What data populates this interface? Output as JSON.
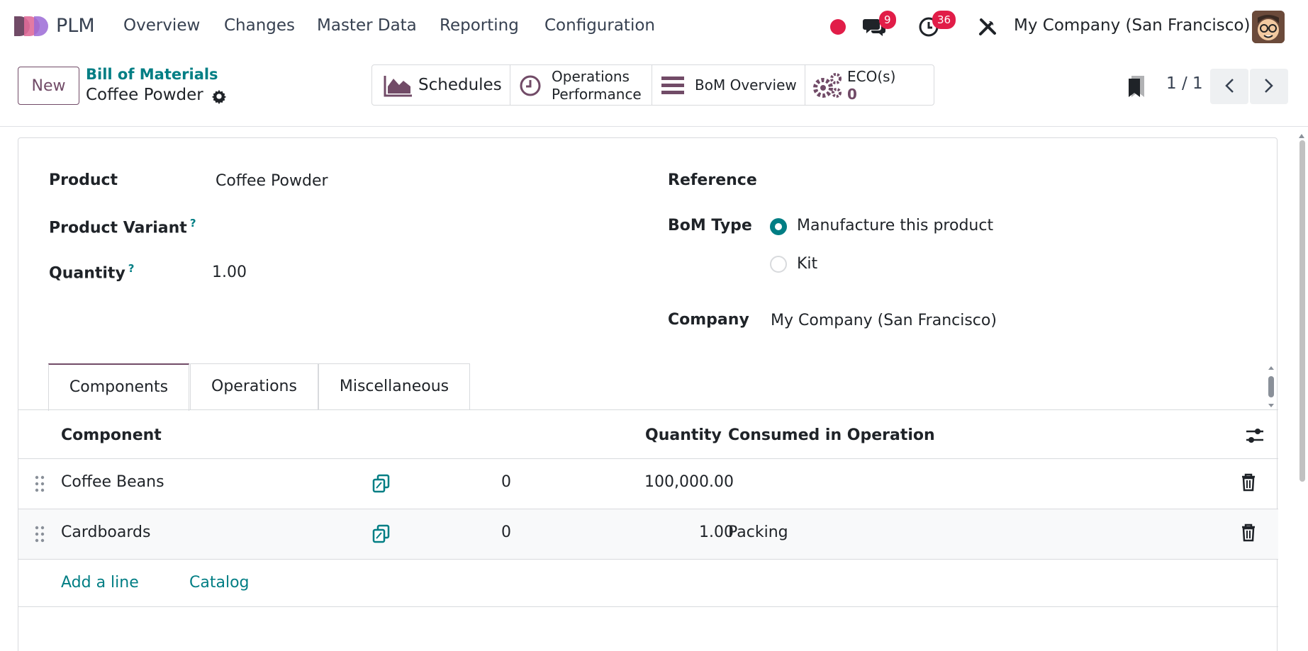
{
  "navbar": {
    "app_name": "PLM",
    "menu": [
      "Overview",
      "Changes",
      "Master Data",
      "Reporting",
      "Configuration"
    ],
    "messages_count": "9",
    "activities_count": "36",
    "company": "My Company (San Francisco)"
  },
  "control": {
    "new_label": "New",
    "breadcrumb": "Bill of Materials",
    "record_title": "Coffee Powder",
    "smart_buttons": {
      "schedules": "Schedules",
      "operations_line1": "Operations",
      "operations_line2": "Performance",
      "bom_overview": "BoM Overview",
      "eco_label": "ECO(s)",
      "eco_value": "0"
    },
    "pager": "1 / 1"
  },
  "form": {
    "product_label": "Product",
    "product_value": "Coffee Powder",
    "variant_label": "Product Variant",
    "quantity_label": "Quantity",
    "quantity_value": "1.00",
    "help_mark": "?",
    "reference_label": "Reference",
    "bom_type_label": "BoM Type",
    "bom_type_options": [
      "Manufacture this product",
      "Kit"
    ],
    "company_label": "Company",
    "company_value": "My Company (San Francisco)"
  },
  "tabs": [
    "Components",
    "Operations",
    "Miscellaneous"
  ],
  "table": {
    "headers": {
      "component": "Component",
      "quantity": "Quantity",
      "operation": "Consumed in Operation"
    },
    "rows": [
      {
        "component": "Coffee Beans",
        "count": "0",
        "quantity": "100,000.00",
        "operation": ""
      },
      {
        "component": "Cardboards",
        "count": "0",
        "quantity": "1.00",
        "operation": "Packing"
      }
    ],
    "add_line": "Add a line",
    "catalog": "Catalog"
  },
  "colors": {
    "brand": "#714b67",
    "accent": "#017e84",
    "badge": "#e11d48"
  }
}
